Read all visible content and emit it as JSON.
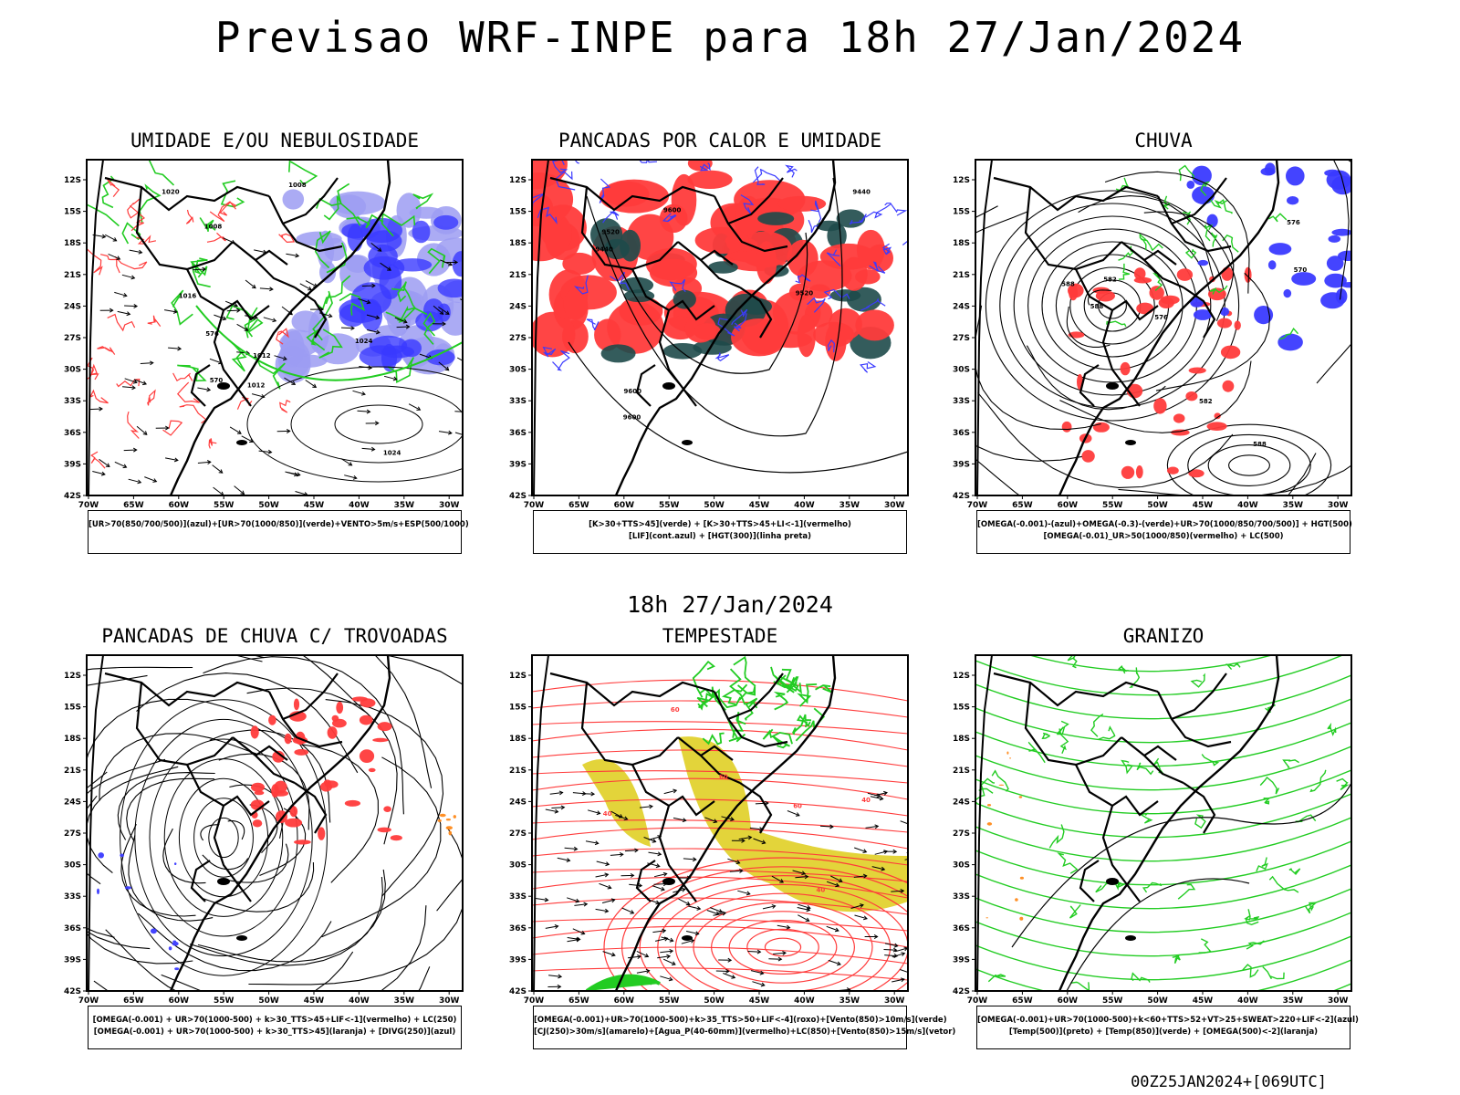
{
  "title": "Previsao WRF-INPE  para 18h 27/Jan/2024",
  "mid_label": "18h 27/Jan/2024",
  "footer": "00Z25JAN2024+[069UTC]",
  "axes": {
    "lat_labels": [
      "12S",
      "15S",
      "18S",
      "21S",
      "24S",
      "27S",
      "30S",
      "33S",
      "36S",
      "39S",
      "42S"
    ],
    "lon_labels": [
      "70W",
      "65W",
      "60W",
      "55W",
      "50W",
      "45W",
      "40W",
      "35W",
      "30W"
    ]
  },
  "colors": {
    "blue": "#3a3aff",
    "light_blue": "#9c9cf2",
    "green": "#22cc22",
    "red": "#ff3b3b",
    "dark_teal": "#1e4a4a",
    "yellow": "#e3d43a",
    "orange": "#ff8a1a",
    "purple": "#9c27b0"
  },
  "panels": [
    {
      "id": "umidade",
      "title": "UMIDADE E/OU NEBULOSIDADE",
      "legend": [
        "[UR>70(850/700/500)](azul)+[UR>70(1000/850)](verde)+VENTO>5m/s+ESP(500/1000)"
      ],
      "contour_labels": [
        "1008",
        "1012",
        "1016",
        "1020",
        "1024",
        "1024",
        "1008",
        "1012",
        "576",
        "570"
      ]
    },
    {
      "id": "pancadas-calor",
      "title": "PANCADAS POR CALOR E UMIDADE",
      "legend": [
        "[K>30+TTS>45](verde) + [K>30+TTS>45+LI<-1](vermelho)",
        "[LIF](cont.azul) + [HGT(300)](linha preta)"
      ],
      "contour_labels": [
        "9600",
        "9520",
        "9440",
        "9520",
        "9600",
        "9600",
        "9440"
      ]
    },
    {
      "id": "chuva",
      "title": "CHUVA",
      "legend": [
        "[OMEGA(-0.001)-(azul)+OMEGA(-0.3)-(verde)+UR>70(1000/850/700/500)] + HGT(500)",
        "[OMEGA(-0.01)_UR>50(1000/850)(vermelho) + LC(500)"
      ],
      "contour_labels": [
        "588",
        "582",
        "576",
        "570",
        "576",
        "582",
        "588",
        "588"
      ]
    },
    {
      "id": "pancadas-trovoadas",
      "title": "PANCADAS DE CHUVA C/ TROVOADAS",
      "legend": [
        "[OMEGA(-0.001) + UR>70(1000-500) + k>30_TTS>45+LIF<-1](vermelho) + LC(250)",
        "[OMEGA(-0.001) + UR>70(1000-500) + k>30_TTS>45](laranja) + [DIVG(250)](azul)"
      ],
      "contour_labels": []
    },
    {
      "id": "tempestade",
      "title": "TEMPESTADE",
      "legend": [
        "[OMEGA(-0.001)+UR>70(1000-500)+k>35_TTS>50+LIF<-4](roxo)+[Vento(850)>10m/s](verde)",
        "[CJ(250)>30m/s](amarelo)+[Agua_P(40-60mm)](vermelho)+LC(850)+[Vento(850)>15m/s](vetor)"
      ],
      "contour_labels": [
        "40",
        "60",
        "40",
        "60",
        "40",
        "60"
      ]
    },
    {
      "id": "granizo",
      "title": "GRANIZO",
      "legend": [
        "[OMEGA(-0.001)+UR>70(1000-500)+k<60+TTS>52+VT>25+SWEAT>220+LIF<-2](azul)",
        "[Temp(500)](preto) + [Temp(850)](verde) + [OMEGA(500)<-2](laranja)"
      ],
      "contour_labels": []
    }
  ]
}
